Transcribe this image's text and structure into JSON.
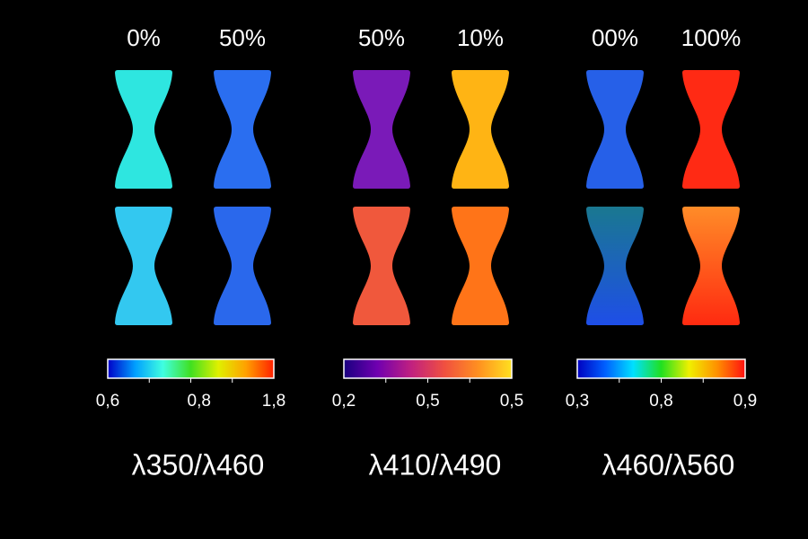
{
  "panels": [
    {
      "labels": [
        "0%",
        "50%"
      ],
      "specimens": [
        [
          "#2ee6e0",
          "#2a6ef0"
        ],
        [
          "#33c8f0",
          "#2a68ec"
        ]
      ],
      "colorbar": {
        "colors": [
          "#0000c8",
          "#00a0ff",
          "#40ffe0",
          "#40e020",
          "#e0f000",
          "#ffa000",
          "#ff2000"
        ],
        "ticks": [
          "0,6",
          "0,8",
          "1,8"
        ]
      },
      "ratio": "λ350/λ460"
    },
    {
      "labels": [
        "50%",
        "10%"
      ],
      "specimens": [
        [
          "#7a1ab8",
          "#ffb414"
        ],
        [
          "#f0583c",
          "#ff7418"
        ]
      ],
      "colorbar": {
        "colors": [
          "#1a0080",
          "#7000b0",
          "#c02080",
          "#f05040",
          "#ff9020",
          "#ffe020"
        ],
        "ticks": [
          "0,2",
          "0,5",
          "0,5"
        ]
      },
      "ratio": "λ410/λ490"
    },
    {
      "labels": [
        "00%",
        "100%"
      ],
      "specimens": [
        [
          "#2660e8",
          "#ff2a14"
        ],
        [
          [
            "#1a7890",
            "#1e4ee8"
          ],
          [
            "#ff8c28",
            "#ff2a10"
          ]
        ]
      ],
      "colorbar": {
        "colors": [
          "#0000c0",
          "#0060ff",
          "#00e0ff",
          "#20e020",
          "#f0f000",
          "#ff9000",
          "#ff1010"
        ],
        "ticks": [
          "0,3",
          "0,8",
          "0,9"
        ]
      },
      "ratio": "λ460/λ560"
    }
  ]
}
